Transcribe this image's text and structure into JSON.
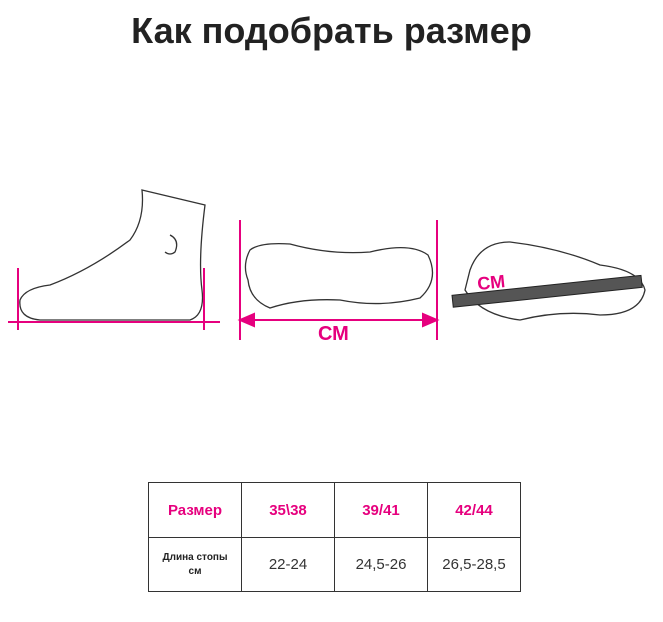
{
  "title": "Как подобрать размер",
  "diagram": {
    "unit_label_1": "СМ",
    "unit_label_2": "СМ",
    "accent_color": "#e6007e"
  },
  "table": {
    "header": [
      "Размер",
      "35\\38",
      "39/41",
      "42/44"
    ],
    "row_label_1": "Длина стопы",
    "row_label_2": "см",
    "values": [
      "22-24",
      "24,5-26",
      "26,5-28,5"
    ]
  }
}
